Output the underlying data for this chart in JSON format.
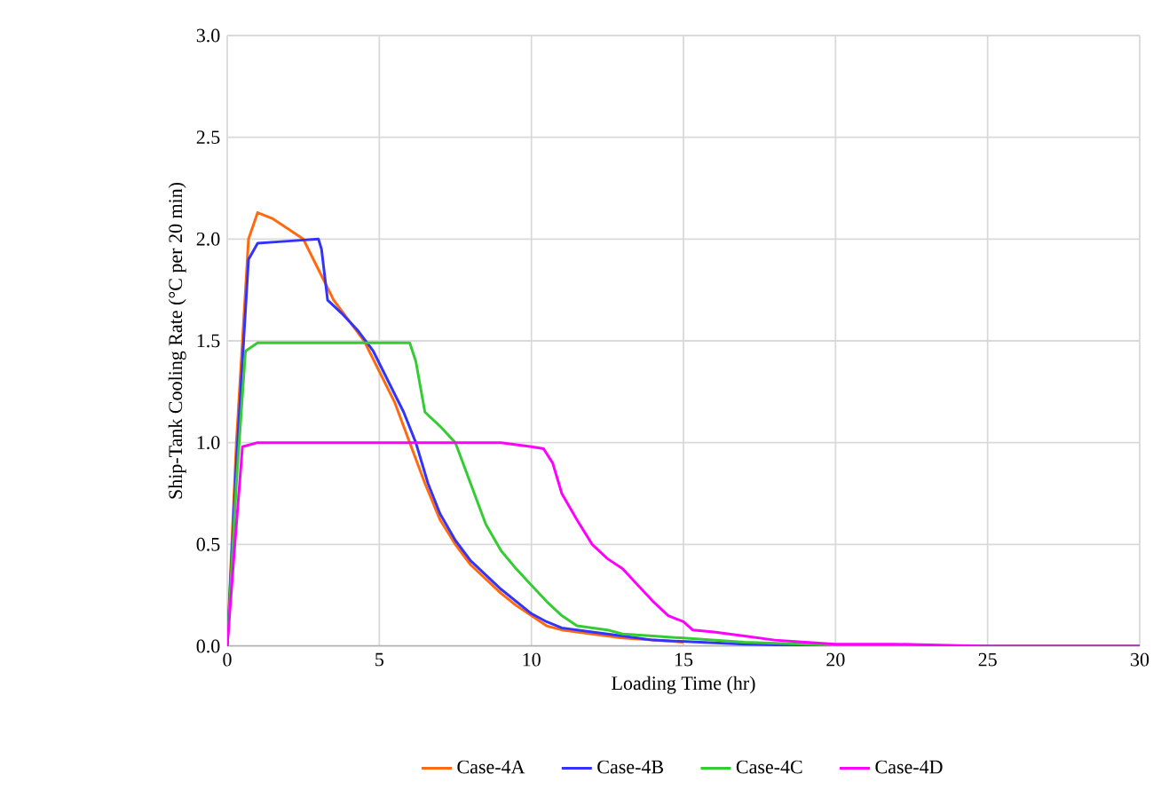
{
  "chart_data": {
    "type": "line",
    "xlabel": "Loading Time (hr)",
    "ylabel": "Ship-Tank Cooling Rate (°C per 20 min)",
    "xlim": [
      0,
      30
    ],
    "xticks": [
      0,
      5,
      10,
      15,
      20,
      25,
      30
    ],
    "ylim": [
      0,
      3
    ],
    "yticks": [
      {
        "value": 0,
        "label": "0.0"
      },
      {
        "value": 0.5,
        "label": "0.5"
      },
      {
        "value": 1,
        "label": "1.0"
      },
      {
        "value": 1.5,
        "label": "1.5"
      },
      {
        "value": 2,
        "label": "2.0"
      },
      {
        "value": 2.5,
        "label": "2.5"
      },
      {
        "value": 3,
        "label": "3.0"
      }
    ],
    "grid": true,
    "legend": "bottom",
    "marker": "none",
    "line_style": "solid",
    "series": [
      {
        "name": "Case-4A",
        "color": "#ff6a10",
        "x": [
          0,
          0.3,
          0.7,
          1.0,
          1.5,
          2.5,
          3,
          3.5,
          4,
          4.5,
          5,
          5.5,
          6,
          6.5,
          7,
          7.5,
          8,
          8.5,
          9,
          9.5,
          10,
          10.5,
          11,
          12,
          13,
          15,
          17,
          20,
          30
        ],
        "values": [
          0,
          1.0,
          2.0,
          2.13,
          2.1,
          2.0,
          1.85,
          1.7,
          1.6,
          1.5,
          1.35,
          1.2,
          1.0,
          0.8,
          0.62,
          0.5,
          0.4,
          0.33,
          0.26,
          0.2,
          0.15,
          0.1,
          0.08,
          0.06,
          0.04,
          0.02,
          null,
          0,
          0
        ]
      },
      {
        "name": "Case-4B",
        "color": "#3333ff",
        "x": [
          0,
          0.3,
          0.7,
          1.0,
          2,
          3,
          3.1,
          3.3,
          3.8,
          4.3,
          4.8,
          5.3,
          5.8,
          6.2,
          6.6,
          7,
          7.5,
          8,
          8.5,
          9,
          9.5,
          10,
          10.5,
          11,
          12,
          13,
          14,
          17,
          20,
          30
        ],
        "values": [
          0,
          0.9,
          1.9,
          1.98,
          1.99,
          2.0,
          1.95,
          1.7,
          1.63,
          1.55,
          1.45,
          1.3,
          1.15,
          1.0,
          0.8,
          0.65,
          0.52,
          0.42,
          0.35,
          0.28,
          0.22,
          0.16,
          0.12,
          0.09,
          0.07,
          0.05,
          0.03,
          0.01,
          0,
          0
        ]
      },
      {
        "name": "Case-4C",
        "color": "#33cc33",
        "x": [
          0,
          0.3,
          0.6,
          1.0,
          6.0,
          6.2,
          6.5,
          7,
          7.5,
          8,
          8.5,
          9,
          9.5,
          10,
          10.5,
          11,
          11.5,
          12.5,
          13,
          14,
          15,
          17,
          19,
          21,
          30
        ],
        "values": [
          0,
          0.8,
          1.45,
          1.49,
          1.49,
          1.4,
          1.15,
          1.08,
          1.0,
          0.8,
          0.6,
          0.47,
          0.38,
          0.3,
          0.22,
          0.15,
          0.1,
          0.08,
          0.06,
          0.05,
          0.04,
          0.02,
          0.01,
          0,
          0
        ]
      },
      {
        "name": "Case-4D",
        "color": "#ff00ff",
        "x": [
          0,
          0.25,
          0.5,
          1,
          9,
          10,
          10.4,
          10.7,
          11,
          11.5,
          12,
          12.5,
          13,
          13.5,
          14,
          14.5,
          15,
          15.3,
          16,
          17,
          18,
          19,
          20,
          22,
          25,
          30
        ],
        "values": [
          0,
          0.5,
          0.98,
          1.0,
          1.0,
          0.98,
          0.97,
          0.9,
          0.75,
          0.62,
          0.5,
          0.43,
          0.38,
          0.3,
          0.22,
          0.15,
          0.12,
          0.08,
          0.07,
          0.05,
          0.03,
          0.02,
          0.01,
          0.01,
          0,
          0
        ]
      }
    ]
  }
}
